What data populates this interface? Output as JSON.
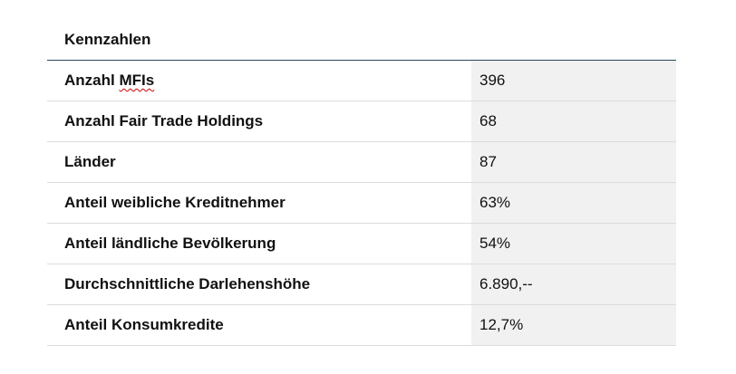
{
  "table": {
    "title": "Kennzahlen",
    "rows": [
      {
        "label_prefix": "Anzahl ",
        "label_flagged": "MFIs",
        "value": "396"
      },
      {
        "label": "Anzahl Fair Trade Holdings",
        "value": "68"
      },
      {
        "label": "Länder",
        "value": "87"
      },
      {
        "label": "Anteil weibliche Kreditnehmer",
        "value": "63%"
      },
      {
        "label": "Anteil ländliche Bevölkerung",
        "value": "54%"
      },
      {
        "label": "Durchschnittliche Darlehenshöhe",
        "value": "6.890,--"
      },
      {
        "label": "Anteil Konsumkredite",
        "value": "12,7%"
      }
    ]
  }
}
